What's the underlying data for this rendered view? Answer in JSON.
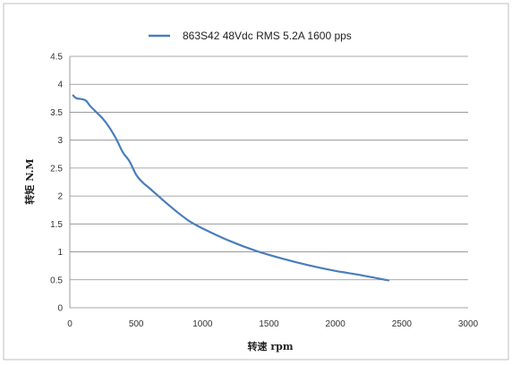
{
  "chart_data": {
    "type": "line",
    "legend": {
      "position": "top"
    },
    "xlabel": "转速 rpm",
    "ylabel": "转矩 N.M",
    "xlim": [
      0,
      3000
    ],
    "ylim": [
      0,
      4.5
    ],
    "x_ticks": [
      0,
      500,
      1000,
      1500,
      2000,
      2500,
      3000
    ],
    "y_ticks": [
      0,
      0.5,
      1,
      1.5,
      2,
      2.5,
      3,
      3.5,
      4,
      4.5
    ],
    "grid": {
      "horizontal": true,
      "vertical": false
    },
    "series": [
      {
        "name": "863S42 48Vdc RMS 5.2A 1600 pps",
        "color": "#4a7ebb",
        "x": [
          25,
          50,
          100,
          125,
          150,
          200,
          250,
          300,
          350,
          400,
          450,
          500,
          550,
          600,
          700,
          800,
          900,
          1000,
          1200,
          1400,
          1600,
          1800,
          2000,
          2200,
          2400
        ],
        "y": [
          3.8,
          3.75,
          3.73,
          3.7,
          3.62,
          3.5,
          3.38,
          3.22,
          3.02,
          2.78,
          2.62,
          2.38,
          2.24,
          2.14,
          1.93,
          1.73,
          1.55,
          1.42,
          1.2,
          1.02,
          0.88,
          0.76,
          0.66,
          0.58,
          0.49
        ]
      }
    ]
  }
}
